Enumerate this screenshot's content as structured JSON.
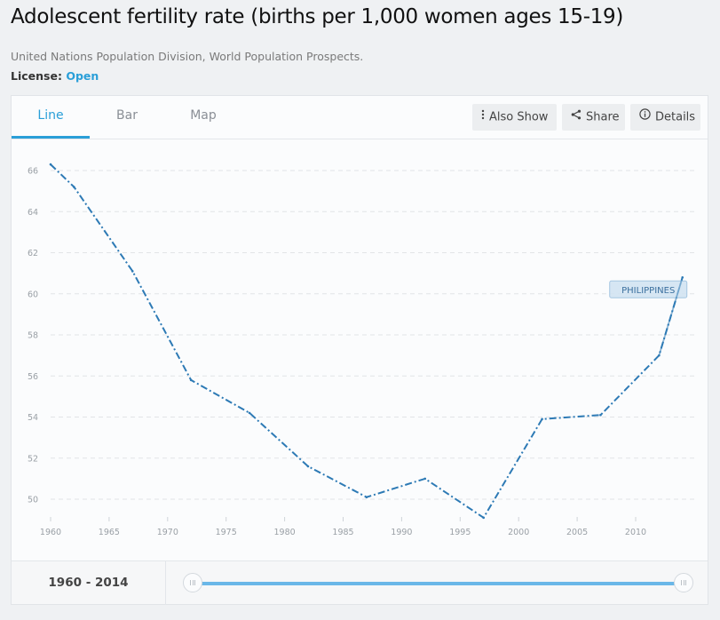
{
  "header": {
    "title": "Adolescent fertility rate (births per 1,000 women ages 15-19)",
    "source": "United Nations Population Division, World Population Prospects.",
    "license_label": "License:",
    "license_value": "Open"
  },
  "tabs": [
    {
      "label": "Line",
      "active": true
    },
    {
      "label": "Bar",
      "active": false
    },
    {
      "label": "Map",
      "active": false
    }
  ],
  "toolbar": {
    "also_show": {
      "label": "Also Show",
      "icon": "vertical-dots-icon"
    },
    "share": {
      "label": "Share",
      "icon": "share-icon"
    },
    "details": {
      "label": "Details",
      "icon": "info-icon"
    }
  },
  "range": {
    "start": "1960",
    "separator": "-",
    "end": "2014"
  },
  "colors": {
    "accent": "#2a9fd8",
    "line": "#2d7ab5",
    "label_bg": "#d3e4f2",
    "label_border": "#9cc1e0",
    "slider": "#6ab7e8"
  },
  "chart_data": {
    "type": "line",
    "title": "Adolescent fertility rate (births per 1,000 women ages 15-19)",
    "xlabel": "",
    "ylabel": "",
    "xlim": [
      1960,
      2014
    ],
    "ylim": [
      49,
      66.5
    ],
    "x_ticks": [
      1960,
      1965,
      1970,
      1975,
      1980,
      1985,
      1990,
      1995,
      2000,
      2005,
      2010
    ],
    "y_ticks": [
      50,
      52,
      54,
      56,
      58,
      60,
      62,
      64,
      66
    ],
    "grid": "horizontal-dashed",
    "line_style": "dash-dot",
    "series": [
      {
        "name": "PHILIPPINES",
        "x": [
          1960,
          1962,
          1967,
          1972,
          1977,
          1982,
          1987,
          1992,
          1997,
          2002,
          2007,
          2012,
          2014
        ],
        "values": [
          66.3,
          65.2,
          61.1,
          55.8,
          54.2,
          51.6,
          50.1,
          51.0,
          49.1,
          53.9,
          54.1,
          57.0,
          60.8
        ]
      }
    ],
    "annotations": [
      {
        "text": "PHILIPPINES",
        "anchor": "end-of-series"
      }
    ]
  }
}
